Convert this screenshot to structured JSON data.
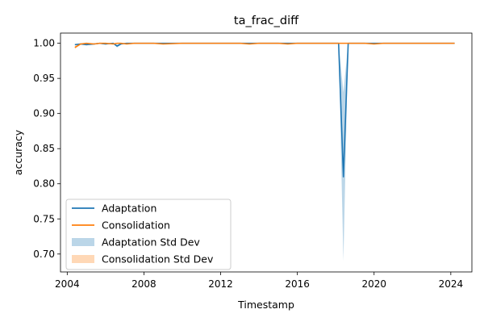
{
  "chart_data": {
    "type": "line",
    "title": "ta_frac_diff",
    "xlabel": "Timestamp",
    "ylabel": "accuracy",
    "xlim": [
      2003.65,
      2025.1
    ],
    "ylim": [
      0.6745,
      1.0145
    ],
    "x_ticks": [
      2004,
      2008,
      2012,
      2016,
      2020,
      2024
    ],
    "y_ticks": [
      0.7,
      0.75,
      0.8,
      0.85,
      0.9,
      0.95,
      1.0
    ],
    "y_tick_labels": [
      "0.70",
      "0.75",
      "0.80",
      "0.85",
      "0.90",
      "0.95",
      "1.00"
    ],
    "grid": false,
    "legend_position": "lower-left",
    "x": [
      2004.4,
      2004.7,
      2005.0,
      2005.4,
      2005.7,
      2006.0,
      2006.4,
      2006.6,
      2006.8,
      2007.1,
      2007.5,
      2008.0,
      2008.5,
      2009.0,
      2010.0,
      2011.0,
      2012.0,
      2013.0,
      2013.5,
      2014.0,
      2015.0,
      2015.5,
      2016.0,
      2017.0,
      2017.9,
      2018.15,
      2018.4,
      2018.65,
      2018.9,
      2019.5,
      2020.0,
      2020.5,
      2021.0,
      2022.0,
      2023.0,
      2024.2
    ],
    "series": [
      {
        "name": "Adaptation",
        "color": "#1f77b4",
        "values": [
          0.998,
          0.999,
          0.998,
          0.999,
          1.0,
          0.999,
          1.0,
          0.996,
          0.999,
          1.0,
          1.0,
          1.0,
          1.0,
          1.0,
          1.0,
          1.0,
          1.0,
          1.0,
          1.0,
          1.0,
          1.0,
          1.0,
          1.0,
          1.0,
          1.0,
          1.0,
          0.81,
          1.0,
          1.0,
          1.0,
          1.0,
          1.0,
          1.0,
          1.0,
          1.0,
          1.0
        ],
        "std": [
          0.001,
          0.001,
          0.001,
          0.001,
          0.0005,
          0.001,
          0.0005,
          0.002,
          0.001,
          0.0,
          0.0,
          0.0,
          0.0,
          0.0,
          0.0,
          0.0,
          0.0,
          0.0,
          0.0,
          0.0,
          0.0,
          0.0,
          0.0,
          0.0,
          0.0,
          0.0,
          0.12,
          0.0,
          0.0,
          0.0,
          0.0,
          0.0,
          0.0,
          0.0,
          0.0,
          0.0
        ]
      },
      {
        "name": "Consolidation",
        "color": "#ff7f0e",
        "values": [
          0.994,
          0.999,
          1.0,
          0.999,
          1.0,
          1.0,
          0.999,
          1.0,
          1.0,
          0.999,
          1.0,
          1.0,
          1.0,
          0.999,
          1.0,
          1.0,
          1.0,
          1.0,
          0.999,
          1.0,
          1.0,
          0.999,
          1.0,
          1.0,
          1.0,
          1.0,
          1.0,
          1.0,
          1.0,
          1.0,
          0.999,
          1.0,
          1.0,
          1.0,
          1.0,
          1.0
        ],
        "std": [
          0.002,
          0.001,
          0.0005,
          0.0005,
          0.0005,
          0.0005,
          0.0005,
          0.0005,
          0.0,
          0.0005,
          0.0,
          0.0,
          0.0,
          0.0005,
          0.0,
          0.0,
          0.0,
          0.0,
          0.0005,
          0.0,
          0.0,
          0.0005,
          0.0,
          0.0,
          0.0,
          0.0,
          0.0,
          0.0,
          0.0,
          0.0,
          0.0005,
          0.0,
          0.0,
          0.0,
          0.0,
          0.0
        ]
      }
    ],
    "legend": [
      {
        "label": "Adaptation",
        "kind": "line",
        "color": "#1f77b4"
      },
      {
        "label": "Consolidation",
        "kind": "line",
        "color": "#ff7f0e"
      },
      {
        "label": "Adaptation Std Dev",
        "kind": "band",
        "color": "#1f77b4"
      },
      {
        "label": "Consolidation Std Dev",
        "kind": "band",
        "color": "#ff7f0e"
      }
    ]
  }
}
